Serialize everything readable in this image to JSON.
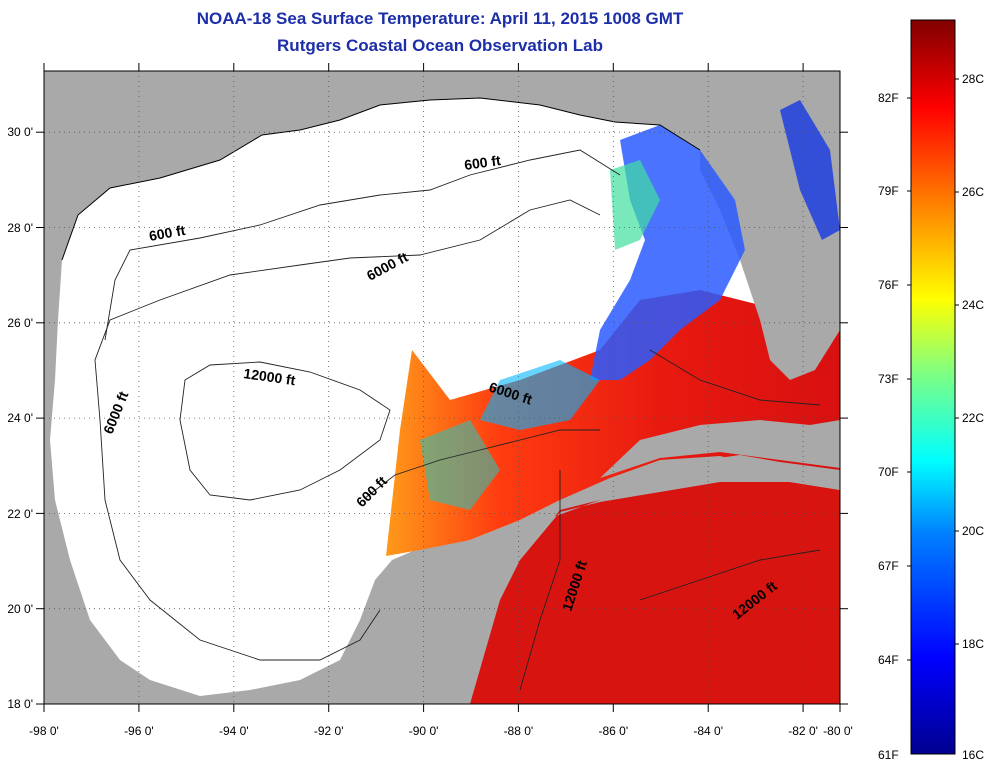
{
  "header": {
    "title": "NOAA-18 Sea Surface Temperature:  April 11, 2015 1008 GMT",
    "subtitle": "Rutgers Coastal Ocean Observation Lab"
  },
  "map": {
    "lon_range": [
      -98,
      -80
    ],
    "lat_range": [
      18,
      31
    ],
    "lon_ticks": [
      "-98 0'",
      "-96 0'",
      "-94 0'",
      "-92 0'",
      "-90 0'",
      "-88 0'",
      "-86 0'",
      "-84 0'",
      "-82 0'",
      "-80 0'"
    ],
    "lat_ticks": [
      "18 0'",
      "20 0'",
      "22 0'",
      "24 0'",
      "26 0'",
      "28 0'",
      "30 0'"
    ],
    "grid": "dotted",
    "land_color": "#a9a9a9",
    "no_data_color": "#ffffff",
    "contour_labels": [
      "600 ft",
      "6000 ft",
      "12000 ft",
      "6000 ft",
      "600 ft",
      "6000 ft",
      "12000 ft",
      "12000 ft",
      "600 ft"
    ]
  },
  "colorbar": {
    "fahrenheit_labels": [
      "82F",
      "79F",
      "76F",
      "73F",
      "70F",
      "67F",
      "64F",
      "61F"
    ],
    "celsius_labels": [
      "28C",
      "26C",
      "24C",
      "22C",
      "20C",
      "18C",
      "16C"
    ],
    "colors": [
      "#00008f",
      "#0000ff",
      "#0080ff",
      "#00ffff",
      "#80ff80",
      "#ffff00",
      "#ff8000",
      "#ff0000",
      "#800000"
    ]
  }
}
